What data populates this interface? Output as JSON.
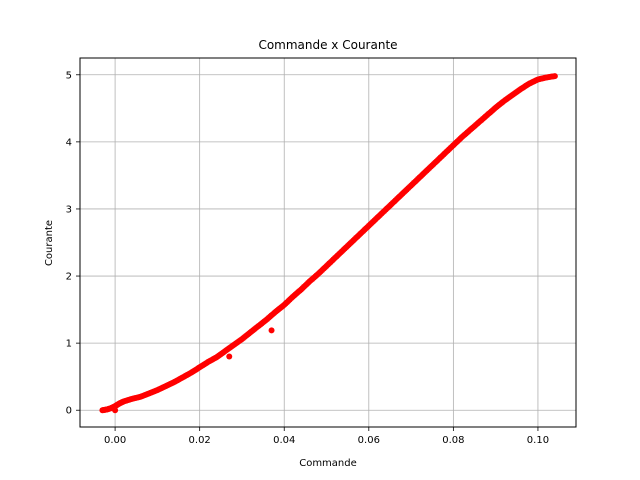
{
  "chart_data": {
    "type": "scatter",
    "title": "Commande x Courante",
    "xlabel": "Commande",
    "ylabel": "Courante",
    "xlim": [
      -0.0083,
      0.109
    ],
    "ylim": [
      -0.25,
      5.25
    ],
    "xticks": [
      0.0,
      0.02,
      0.04,
      0.06,
      0.08,
      0.1
    ],
    "xtick_labels": [
      "0.00",
      "0.02",
      "0.04",
      "0.06",
      "0.08",
      "0.10"
    ],
    "yticks": [
      0,
      1,
      2,
      3,
      4,
      5
    ],
    "ytick_labels": [
      "0",
      "1",
      "2",
      "3",
      "4",
      "5"
    ],
    "grid": true,
    "marker_color": "#ff0000",
    "series": [
      {
        "x": [
          -0.003,
          -0.002,
          -0.001,
          0.0,
          0.001,
          0.002,
          0.004,
          0.006,
          0.008,
          0.01,
          0.012,
          0.014,
          0.016,
          0.018,
          0.02,
          0.022,
          0.024,
          0.026,
          0.028,
          0.03,
          0.032,
          0.034,
          0.036,
          0.038,
          0.04,
          0.042,
          0.044,
          0.046,
          0.048,
          0.05,
          0.052,
          0.054,
          0.056,
          0.058,
          0.06,
          0.062,
          0.064,
          0.066,
          0.068,
          0.07,
          0.072,
          0.074,
          0.076,
          0.078,
          0.08,
          0.082,
          0.084,
          0.086,
          0.088,
          0.09,
          0.092,
          0.094,
          0.096,
          0.098,
          0.1,
          0.102,
          0.104,
          0.0,
          0.027,
          0.037
        ],
        "y": [
          0.0,
          0.01,
          0.03,
          0.06,
          0.1,
          0.13,
          0.17,
          0.2,
          0.25,
          0.3,
          0.36,
          0.42,
          0.49,
          0.56,
          0.64,
          0.72,
          0.79,
          0.88,
          0.97,
          1.06,
          1.16,
          1.26,
          1.36,
          1.47,
          1.57,
          1.69,
          1.8,
          1.92,
          2.03,
          2.15,
          2.27,
          2.39,
          2.51,
          2.63,
          2.75,
          2.87,
          2.99,
          3.11,
          3.23,
          3.35,
          3.47,
          3.59,
          3.71,
          3.83,
          3.95,
          4.07,
          4.18,
          4.29,
          4.4,
          4.51,
          4.61,
          4.7,
          4.79,
          4.87,
          4.93,
          4.96,
          4.98,
          0.0,
          0.8,
          1.19
        ]
      }
    ]
  }
}
